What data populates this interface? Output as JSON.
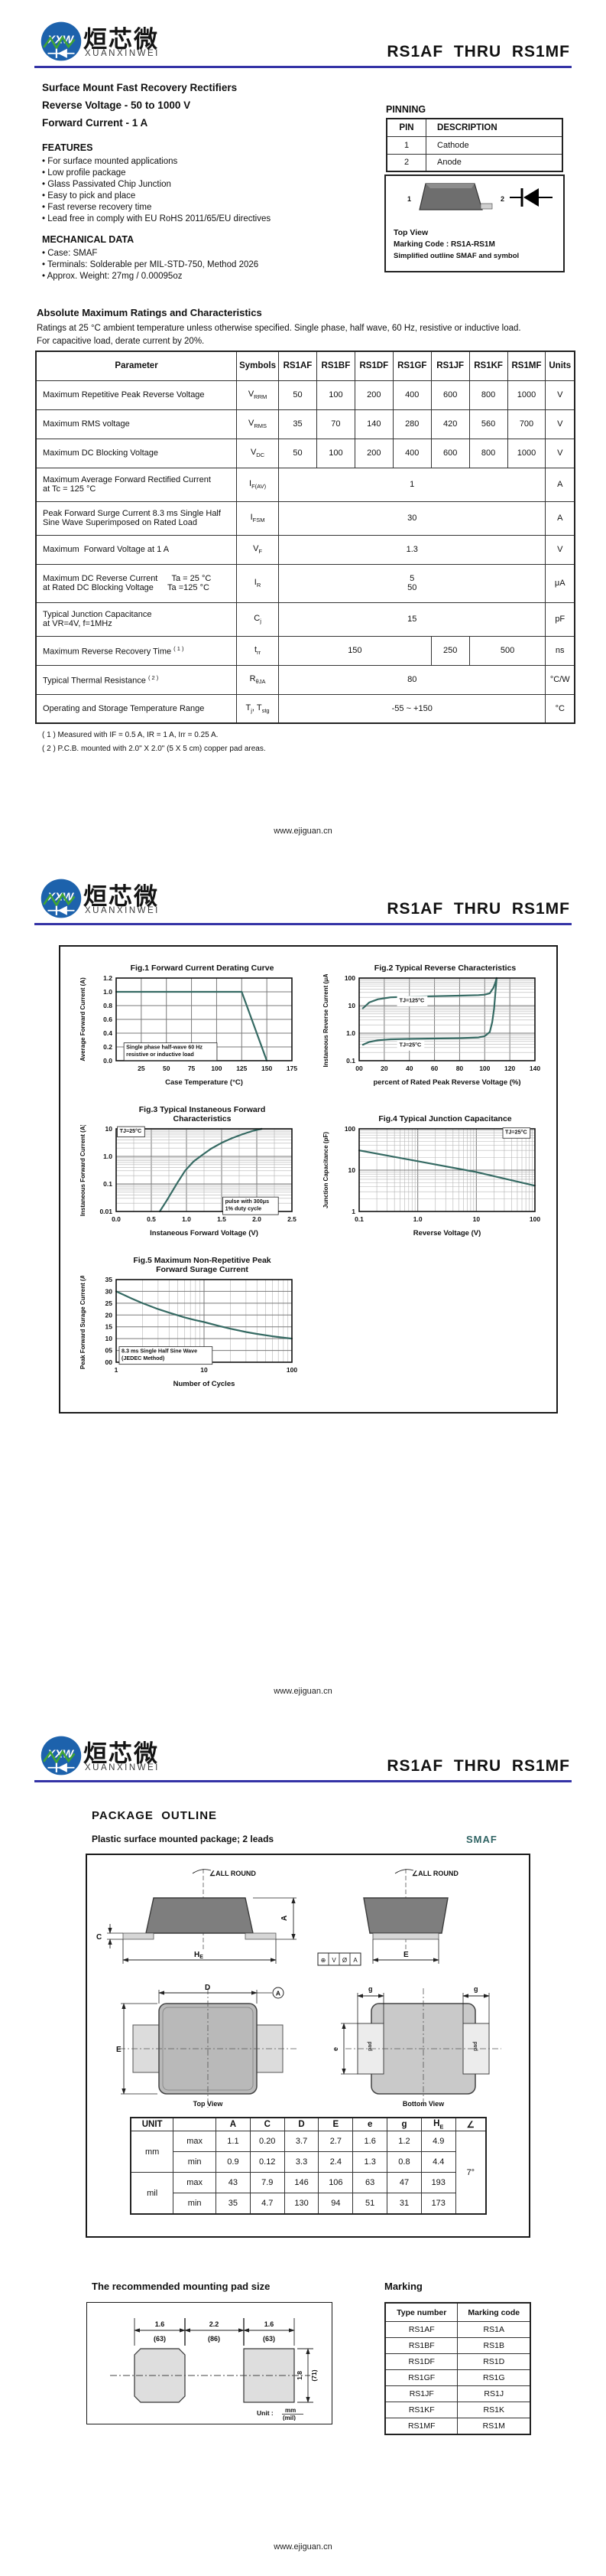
{
  "header": {
    "logo_text": "XXW",
    "brand_cn": "烜芯微",
    "brand_en": "XUANXINWEI",
    "title": "RS1AF  THRU  RS1MF"
  },
  "footer": {
    "url": "www.ejiguan.cn"
  },
  "colors": {
    "accent_rule": "#3433a6",
    "chart_line": "#356a63",
    "smaf_teal": "#2f6363",
    "logo_blue": "#1d62ac",
    "logo_green": "#3fa435"
  },
  "page1": {
    "subtitle": [
      "Surface Mount Fast Recovery Rectifiers",
      "Reverse Voltage - 50 to 1000 V",
      "Forward Current - 1 A"
    ],
    "features": {
      "heading": "FEATURES",
      "items": [
        "For surface mounted applications",
        "Low profile package",
        "Glass Passivated Chip Junction",
        "Easy to pick and place",
        "Fast reverse recovery time",
        "Lead free in comply with EU RoHS 2011/65/EU directives"
      ]
    },
    "mechanical": {
      "heading": "MECHANICAL DATA",
      "items": [
        "Case: SMAF",
        "Terminals: Solderable per MIL-STD-750, Method 2026",
        "Approx. Weight:  27mg / 0.00095oz"
      ]
    },
    "pinning": {
      "heading": "PINNING",
      "headers": [
        "PIN",
        "DESCRIPTION"
      ],
      "rows": [
        [
          "1",
          "Cathode"
        ],
        [
          "2",
          "Anode"
        ]
      ]
    },
    "package_box": {
      "pin1": "1",
      "pin2": "2",
      "top_view": "Top View",
      "marking_code": "Marking Code :  RS1A-RS1M",
      "caption": "Simplified outline SMAF and symbol"
    },
    "ratings": {
      "heading": "Absolute Maximum Ratings and Characteristics",
      "desc1": "Ratings at 25 °C ambient temperature unless otherwise specified. Single phase, half wave, 60 Hz, resistive or inductive load.",
      "desc2": "For capacitive load, derate current by 20%.",
      "headers": [
        "Parameter",
        "Symbols",
        "RS1AF",
        "RS1BF",
        "RS1DF",
        "RS1GF",
        "RS1JF",
        "RS1KF",
        "RS1MF",
        "Units"
      ],
      "rows": [
        {
          "param": "Maximum Repetitive Peak Reverse Voltage",
          "symbol": {
            "b": "V",
            "s": "RRM"
          },
          "values": [
            "50",
            "100",
            "200",
            "400",
            "600",
            "800",
            "1000"
          ],
          "unit": "V"
        },
        {
          "param": "Maximum RMS voltage",
          "symbol": {
            "b": "V",
            "s": "RMS"
          },
          "values": [
            "35",
            "70",
            "140",
            "280",
            "420",
            "560",
            "700"
          ],
          "unit": "V"
        },
        {
          "param": "Maximum DC Blocking Voltage",
          "symbol": {
            "b": "V",
            "s": "DC"
          },
          "values": [
            "50",
            "100",
            "200",
            "400",
            "600",
            "800",
            "1000"
          ],
          "unit": "V"
        },
        {
          "param": "Maximum Average Forward Rectified Current",
          "param2": "at Tc = 125 °C",
          "symbol": {
            "b": "I",
            "s": "F(AV)"
          },
          "span": "1",
          "unit": "A"
        },
        {
          "param": "Peak Forward Surge Current 8.3 ms Single Half",
          "param2": "Sine Wave Superimposed on Rated Load",
          "symbol": {
            "b": "I",
            "s": "FSM"
          },
          "span": "30",
          "unit": "A"
        },
        {
          "param": "Maximum  Forward Voltage at 1 A",
          "symbol": {
            "b": "V",
            "s": "F"
          },
          "span": "1.3",
          "unit": "V"
        },
        {
          "param": "Maximum DC Reverse Current      Ta = 25 °C",
          "param2": "at Rated DC Blocking Voltage      Ta =125 °C",
          "symbol": {
            "b": "I",
            "s": "R"
          },
          "span": "5",
          "span2": "50",
          "unit": "μA"
        },
        {
          "param": "Typical Junction Capacitance",
          "param2": "at VR=4V, f=1MHz",
          "symbol": {
            "b": "C",
            "s": "j"
          },
          "span": "15",
          "unit": "pF"
        },
        {
          "param": "Maximum Reverse Recovery Time ",
          "param_sup": "( 1 )",
          "symbol": {
            "b": "t",
            "s": "rr"
          },
          "v1": "150",
          "v2": "250",
          "v3": "500",
          "unit": "ns"
        },
        {
          "param": "Typical Thermal Resistance ",
          "param_sup": "( 2 )",
          "symbol": {
            "b": "R",
            "s": "θJA"
          },
          "span": "80",
          "unit": "°C/W"
        },
        {
          "param": "Operating and Storage Temperature Range",
          "symbol": {
            "b": "T",
            "s": "j",
            "b2": ", T",
            "s2": "stg"
          },
          "span": "-55 ~ +150",
          "unit": "°C"
        }
      ],
      "notes": [
        "( 1 ) Measured with IF = 0.5 A, IR = 1 A, Irr = 0.25 A.",
        "( 2 ) P.C.B. mounted with 2.0\" X 2.0\" (5 X 5 cm) copper pad areas."
      ]
    }
  },
  "chart_data": [
    {
      "id": "fig1",
      "type": "line",
      "title": "Fig.1  Forward Current Derating Curve",
      "xlabel": "Case Temperature (°C)",
      "ylabel": "Average Forward Current  (A)",
      "xscale": "linear",
      "xlim": [
        0,
        175
      ],
      "xticks": [
        [
          25,
          "25"
        ],
        [
          50,
          "50"
        ],
        [
          75,
          "75"
        ],
        [
          100,
          "100"
        ],
        [
          125,
          "125"
        ],
        [
          150,
          "150"
        ],
        [
          175,
          "175"
        ]
      ],
      "yscale": "linear",
      "ylim": [
        0,
        1.2
      ],
      "yticks": [
        [
          0,
          "0.0"
        ],
        [
          0.2,
          "0.2"
        ],
        [
          0.4,
          "0.4"
        ],
        [
          0.6,
          "0.6"
        ],
        [
          0.8,
          "0.8"
        ],
        [
          1,
          "1.0"
        ],
        [
          1.2,
          "1.2"
        ]
      ],
      "series": [
        {
          "name": "derating",
          "points": [
            [
              0,
              1
            ],
            [
              125,
              1
            ],
            [
              150,
              0
            ]
          ]
        }
      ],
      "annotations": [
        {
          "x": 10,
          "y": 0.17,
          "box": true,
          "text": "Single phase half-wave 60 Hz\nresistive or inductive load"
        }
      ]
    },
    {
      "id": "fig2",
      "type": "line",
      "title": "Fig.2  Typical Reverse Characteristics",
      "xlabel": "percent of Rated  Peak Reverse Voltage (%)",
      "ylabel": "Instaneous Reverse Current  (μA)",
      "xscale": "linear",
      "xlim": [
        0,
        140
      ],
      "xticks": [
        [
          0,
          "00"
        ],
        [
          20,
          "20"
        ],
        [
          40,
          "40"
        ],
        [
          60,
          "60"
        ],
        [
          80,
          "80"
        ],
        [
          100,
          "100"
        ],
        [
          120,
          "120"
        ],
        [
          140,
          "140"
        ]
      ],
      "yscale": "log",
      "ylim": [
        0.1,
        100
      ],
      "yticks": [
        [
          0.1,
          "0.1"
        ],
        [
          1,
          "1.0"
        ],
        [
          10,
          "10"
        ],
        [
          100,
          "100"
        ]
      ],
      "series": [
        {
          "name": "TJ=125C",
          "points": [
            [
              3,
              8
            ],
            [
              8,
              13
            ],
            [
              15,
              17
            ],
            [
              25,
              20
            ],
            [
              40,
              21
            ],
            [
              60,
              22
            ],
            [
              80,
              23
            ],
            [
              95,
              24
            ],
            [
              100,
              25
            ],
            [
              104,
              28
            ],
            [
              107,
              45
            ],
            [
              108.5,
              70
            ],
            [
              109.5,
              100
            ]
          ]
        },
        {
          "name": "TJ=25C",
          "points": [
            [
              3,
              0.38
            ],
            [
              8,
              0.48
            ],
            [
              15,
              0.55
            ],
            [
              25,
              0.6
            ],
            [
              40,
              0.62
            ],
            [
              60,
              0.64
            ],
            [
              80,
              0.66
            ],
            [
              95,
              0.7
            ],
            [
              100,
              0.78
            ],
            [
              104,
              1.1
            ],
            [
              106,
              2.5
            ],
            [
              107.5,
              8
            ],
            [
              108.5,
              30
            ],
            [
              109.5,
              100
            ]
          ]
        }
      ],
      "annotations": [
        {
          "x": 32,
          "y": 13.5,
          "box": "plain",
          "text": "TJ=125°C"
        },
        {
          "x": 32,
          "y": 0.33,
          "box": "plain",
          "text": "TJ=25°C"
        }
      ]
    },
    {
      "id": "fig3",
      "type": "line",
      "title": "Fig.3  Typical Instaneous Forward\nCharacteristics",
      "xlabel": "Instaneous Forward Voltage (V)",
      "ylabel": "Instaneous Forward Current (A)",
      "xscale": "linear",
      "xlim": [
        0,
        2.5
      ],
      "xminor": 0.25,
      "xticks": [
        [
          0,
          "0.0"
        ],
        [
          0.5,
          "0.5"
        ],
        [
          1,
          "1.0"
        ],
        [
          1.5,
          "1.5"
        ],
        [
          2,
          "2.0"
        ],
        [
          2.5,
          "2.5"
        ]
      ],
      "yscale": "log",
      "ylim": [
        0.01,
        10
      ],
      "yticks": [
        [
          0.01,
          "0.01"
        ],
        [
          0.1,
          "0.1"
        ],
        [
          1,
          "1.0"
        ],
        [
          10,
          "10"
        ]
      ],
      "series": [
        {
          "name": "vf",
          "points": [
            [
              0.62,
              0.01
            ],
            [
              0.72,
              0.025
            ],
            [
              0.8,
              0.055
            ],
            [
              0.88,
              0.12
            ],
            [
              0.98,
              0.3
            ],
            [
              1.1,
              0.65
            ],
            [
              1.22,
              1.1
            ],
            [
              1.35,
              1.9
            ],
            [
              1.5,
              3.1
            ],
            [
              1.65,
              4.6
            ],
            [
              1.8,
              6.4
            ],
            [
              1.95,
              8.5
            ],
            [
              2.07,
              10
            ]
          ]
        }
      ],
      "annotations": [
        {
          "x": 0.05,
          "y": 7.2,
          "box": true,
          "text": "TJ=25°C"
        },
        {
          "x": 1.55,
          "y": 0.02,
          "box": true,
          "text": "pulse with 300μs\n1% duty cycle"
        }
      ]
    },
    {
      "id": "fig4",
      "type": "line",
      "title": "Fig.4  Typical Junction Capacitance",
      "xlabel": "Reverse  Voltage (V)",
      "ylabel": "Junction Capacitance (pF)",
      "xscale": "log",
      "xlim": [
        0.1,
        100
      ],
      "xticks": [
        [
          0.1,
          "0.1"
        ],
        [
          1,
          "1.0"
        ],
        [
          10,
          "10"
        ],
        [
          100,
          "100"
        ]
      ],
      "yscale": "log",
      "ylim": [
        1,
        100
      ],
      "yticks": [
        [
          1,
          "1"
        ],
        [
          10,
          "10"
        ],
        [
          100,
          "100"
        ]
      ],
      "series": [
        {
          "name": "cj",
          "points": [
            [
              0.1,
              30
            ],
            [
              1,
              16.5
            ],
            [
              10,
              9
            ],
            [
              100,
              4.2
            ]
          ]
        }
      ],
      "annotations": [
        {
          "x": 31,
          "y": 75,
          "box": true,
          "text": "TJ=25°C"
        }
      ]
    },
    {
      "id": "fig5",
      "type": "line",
      "title": "Fig.5  Maximum Non-Repetitive Peak\nForward Surage Current",
      "xlabel": "Number of Cycles",
      "ylabel": "Peak  Forward Surage Current (A)",
      "xscale": "log",
      "xlim": [
        1,
        100
      ],
      "xticks": [
        [
          1,
          "1"
        ],
        [
          10,
          "10"
        ],
        [
          100,
          "100"
        ]
      ],
      "yscale": "linear",
      "ylim": [
        0,
        35
      ],
      "yticks": [
        [
          0,
          "00"
        ],
        [
          5,
          "05"
        ],
        [
          10,
          "10"
        ],
        [
          15,
          "15"
        ],
        [
          20,
          "20"
        ],
        [
          25,
          "25"
        ],
        [
          30,
          "30"
        ],
        [
          35,
          "35"
        ]
      ],
      "series": [
        {
          "name": "surge",
          "points": [
            [
              1,
              30
            ],
            [
              1.5,
              27
            ],
            [
              2,
              25
            ],
            [
              3,
              22.5
            ],
            [
              4,
              21
            ],
            [
              6,
              19
            ],
            [
              8,
              17.8
            ],
            [
              10,
              17
            ],
            [
              15,
              15.3
            ],
            [
              20,
              14.2
            ],
            [
              30,
              12.8
            ],
            [
              40,
              12
            ],
            [
              60,
              11
            ],
            [
              80,
              10.4
            ],
            [
              100,
              10
            ]
          ]
        }
      ],
      "annotations": [
        {
          "x": 1.15,
          "y": 4,
          "box": true,
          "text": "8.3 ms Single Half Sine Wave\n(JEDEC Method)"
        }
      ]
    }
  ],
  "page3": {
    "outline_heading": "PACKAGE  OUTLINE",
    "outline_sub": "Plastic surface mounted package; 2 leads",
    "case_name": "SMAF",
    "drawing": {
      "all_round": "∠ALL ROUND",
      "dim_c": "C",
      "dim_a": "A",
      "dim_h_base": "H",
      "dim_h_sub": "E",
      "dim_e_side": "E",
      "dim_d": "D",
      "datum": "A",
      "dim_e_top": "E",
      "dim_g": "g",
      "dim_e_small": "e",
      "pad_label": "pad",
      "top_view": "Top View",
      "bottom_view": "Bottom View",
      "datum_box": [
        "⊕",
        "V",
        "Ø",
        "A"
      ]
    },
    "dim_table": {
      "unit_header": "UNIT",
      "cols": [
        "A",
        "C",
        "D",
        "E",
        "e",
        "g"
      ],
      "he": {
        "b": "H",
        "s": "E"
      },
      "angle_header": "∠",
      "rows": [
        {
          "unit": "mm",
          "limit": "max",
          "values": [
            "1.1",
            "0.20",
            "3.7",
            "2.7",
            "1.6",
            "1.2",
            "4.9"
          ]
        },
        {
          "unit": "mm",
          "limit": "min",
          "values": [
            "0.9",
            "0.12",
            "3.3",
            "2.4",
            "1.3",
            "0.8",
            "4.4"
          ]
        },
        {
          "unit": "mil",
          "limit": "max",
          "values": [
            "43",
            "7.9",
            "146",
            "106",
            "63",
            "47",
            "193"
          ]
        },
        {
          "unit": "mil",
          "limit": "min",
          "values": [
            "35",
            "4.7",
            "130",
            "94",
            "51",
            "31",
            "173"
          ]
        }
      ],
      "angle": "7°"
    },
    "pad_section": {
      "heading": "The recommended mounting pad size",
      "w1": "1.6",
      "w1m": "(63)",
      "gap": "2.2",
      "gapm": "(86)",
      "w2": "1.6",
      "w2m": "(63)",
      "h": "1.8",
      "hm": "(71)",
      "unit_label": "Unit :",
      "unit_top": "mm",
      "unit_bottom": "(mil)"
    },
    "marking": {
      "heading": "Marking",
      "headers": [
        "Type number",
        "Marking code"
      ],
      "rows": [
        [
          "RS1AF",
          "RS1A"
        ],
        [
          "RS1BF",
          "RS1B"
        ],
        [
          "RS1DF",
          "RS1D"
        ],
        [
          "RS1GF",
          "RS1G"
        ],
        [
          "RS1JF",
          "RS1J"
        ],
        [
          "RS1KF",
          "RS1K"
        ],
        [
          "RS1MF",
          "RS1M"
        ]
      ]
    }
  }
}
